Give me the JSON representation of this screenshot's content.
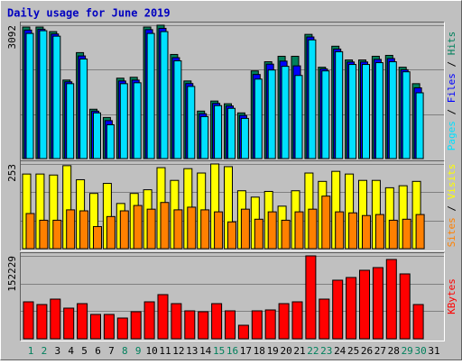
{
  "title": "Daily usage for June 2019",
  "categories": [
    "1",
    "2",
    "3",
    "4",
    "5",
    "6",
    "7",
    "8",
    "9",
    "10",
    "11",
    "12",
    "13",
    "14",
    "15",
    "16",
    "17",
    "18",
    "19",
    "20",
    "21",
    "22",
    "23",
    "24",
    "25",
    "26",
    "27",
    "28",
    "29",
    "30",
    "31"
  ],
  "category_colors": [
    "#00805c",
    "#00805c",
    "#000000",
    "#000000",
    "#000000",
    "#000000",
    "#000000",
    "#00805c",
    "#00805c",
    "#000000",
    "#000000",
    "#000000",
    "#000000",
    "#000000",
    "#00805c",
    "#00805c",
    "#000000",
    "#000000",
    "#000000",
    "#000000",
    "#000000",
    "#00805c",
    "#00805c",
    "#000000",
    "#000000",
    "#000000",
    "#000000",
    "#000000",
    "#00805c",
    "#00805c",
    "#000000"
  ],
  "separator": " / ",
  "chart_data": [
    {
      "type": "bar",
      "ylim": [
        0,
        3092
      ],
      "yticks": [
        3092
      ],
      "series": [
        {
          "name": "Hits",
          "color": "#00805c",
          "values": [
            3050,
            3050,
            2944,
            1821,
            2457,
            1144,
            953,
            1864,
            1885,
            3050,
            3092,
            2414,
            1800,
            1101,
            1334,
            1271,
            1059,
            2033,
            2245,
            2372,
            2372,
            2880,
            2118,
            2605,
            2287,
            2287,
            2372,
            2393,
            2118,
            1737,
            0
          ]
        },
        {
          "name": "Files",
          "color": "#0000ff",
          "values": [
            2980,
            3000,
            2890,
            1780,
            2380,
            1100,
            880,
            1800,
            1820,
            2990,
            3020,
            2340,
            1740,
            1040,
            1280,
            1220,
            1000,
            1950,
            2190,
            2260,
            2150,
            2820,
            2080,
            2540,
            2240,
            2240,
            2300,
            2320,
            2060,
            1640,
            0
          ]
        },
        {
          "name": "Pages",
          "color": "#00e0ff",
          "values": [
            2902,
            2965,
            2838,
            1737,
            2309,
            1059,
            784,
            1737,
            1758,
            2902,
            2944,
            2266,
            1673,
            974,
            1228,
            1165,
            932,
            1843,
            2054,
            2139,
            1927,
            2753,
            2033,
            2478,
            2182,
            2182,
            2224,
            2245,
            2012,
            1525,
            0
          ]
        }
      ]
    },
    {
      "type": "bar",
      "ylim": [
        0,
        253
      ],
      "yticks": [
        253
      ],
      "series": [
        {
          "name": "Visits",
          "color": "#ffff00",
          "values": [
            223,
            223,
            220,
            248,
            206,
            165,
            195,
            135,
            165,
            176,
            242,
            204,
            239,
            226,
            253,
            245,
            173,
            154,
            171,
            127,
            173,
            226,
            201,
            231,
            223,
            204,
            204,
            182,
            188,
            201,
            0
          ]
        },
        {
          "name": "Sites",
          "color": "#ff8000",
          "values": [
            105,
            85,
            85,
            116,
            113,
            66,
            96,
            113,
            129,
            118,
            138,
            116,
            124,
            116,
            110,
            80,
            118,
            88,
            110,
            85,
            110,
            118,
            157,
            110,
            107,
            99,
            102,
            85,
            88,
            102,
            0
          ]
        }
      ]
    },
    {
      "type": "bar",
      "ylim": [
        0,
        152229
      ],
      "yticks": [
        152229
      ],
      "series": [
        {
          "name": "KBytes",
          "color": "#ff0000",
          "values": [
            67855,
            62890,
            72820,
            56270,
            64545,
            44685,
            44685,
            38065,
            49650,
            67855,
            81095,
            64545,
            51305,
            49650,
            64545,
            51305,
            24825,
            51305,
            52960,
            64545,
            67855,
            152229,
            72820,
            107575,
            112540,
            125780,
            130745,
            145640,
            119160,
            62890,
            0
          ]
        }
      ]
    }
  ]
}
